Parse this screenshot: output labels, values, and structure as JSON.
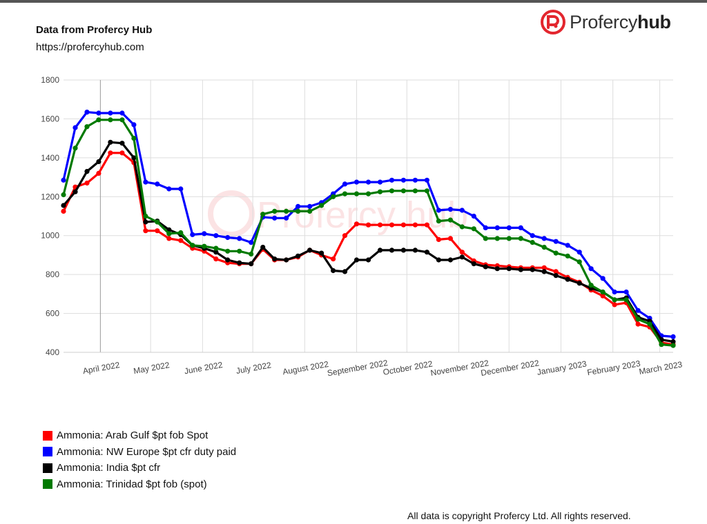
{
  "header": {
    "title": "Data from Profercy Hub",
    "url": "https://profercyhub.com"
  },
  "brand": {
    "name_regular": "Profercy",
    "name_bold": "hub",
    "icon": "profercy-logo-icon",
    "color": "#e3262e"
  },
  "watermark": "Profercy hub",
  "footer": "All data is copyright Profercy Ltd. All rights reserved.",
  "chart_data": {
    "type": "line",
    "title": "",
    "xlabel": "",
    "ylabel": "",
    "ylim": [
      400,
      1800
    ],
    "yticks": [
      400,
      600,
      800,
      1000,
      1200,
      1400,
      1600,
      1800
    ],
    "grid": true,
    "legend_position": "bottom-left",
    "xticks": [
      {
        "label": "April 2022",
        "date": "2022-04-01"
      },
      {
        "label": "May 2022",
        "date": "2022-05-01"
      },
      {
        "label": "June 2022",
        "date": "2022-06-01"
      },
      {
        "label": "July 2022",
        "date": "2022-07-01"
      },
      {
        "label": "August 2022",
        "date": "2022-08-01"
      },
      {
        "label": "September 2022",
        "date": "2022-09-01"
      },
      {
        "label": "October 2022",
        "date": "2022-10-01"
      },
      {
        "label": "November 2022",
        "date": "2022-11-01"
      },
      {
        "label": "December 2022",
        "date": "2022-12-01"
      },
      {
        "label": "January 2023",
        "date": "2023-01-01"
      },
      {
        "label": "February 2023",
        "date": "2023-02-01"
      },
      {
        "label": "March 2023",
        "date": "2023-03-01"
      }
    ],
    "x": [
      "2022-03-10",
      "2022-03-17",
      "2022-03-24",
      "2022-03-31",
      "2022-04-07",
      "2022-04-14",
      "2022-04-21",
      "2022-04-28",
      "2022-05-05",
      "2022-05-12",
      "2022-05-19",
      "2022-05-26",
      "2022-06-02",
      "2022-06-09",
      "2022-06-16",
      "2022-06-23",
      "2022-06-30",
      "2022-07-07",
      "2022-07-14",
      "2022-07-21",
      "2022-07-28",
      "2022-08-04",
      "2022-08-11",
      "2022-08-18",
      "2022-08-25",
      "2022-09-01",
      "2022-09-08",
      "2022-09-15",
      "2022-09-22",
      "2022-09-29",
      "2022-10-06",
      "2022-10-13",
      "2022-10-20",
      "2022-10-27",
      "2022-11-03",
      "2022-11-10",
      "2022-11-17",
      "2022-11-24",
      "2022-12-01",
      "2022-12-08",
      "2022-12-15",
      "2022-12-22",
      "2022-12-29",
      "2023-01-05",
      "2023-01-12",
      "2023-01-19",
      "2023-01-26",
      "2023-02-02",
      "2023-02-09",
      "2023-02-16",
      "2023-02-23",
      "2023-03-02",
      "2023-03-09"
    ],
    "series": [
      {
        "name": "Ammonia: Arab Gulf $pt fob Spot",
        "color": "#ff0000",
        "values": [
          1125,
          1250,
          1270,
          1320,
          1425,
          1425,
          1375,
          1025,
          1025,
          985,
          975,
          935,
          920,
          880,
          860,
          855,
          855,
          930,
          875,
          875,
          890,
          925,
          900,
          880,
          1000,
          1060,
          1055,
          1055,
          1055,
          1055,
          1055,
          1055,
          980,
          985,
          915,
          870,
          850,
          845,
          840,
          835,
          835,
          835,
          815,
          785,
          760,
          720,
          690,
          645,
          655,
          545,
          530,
          450,
          440
        ]
      },
      {
        "name": "Ammonia: NW Europe $pt cfr duty paid",
        "color": "#0000ff",
        "values": [
          1285,
          1555,
          1635,
          1630,
          1630,
          1630,
          1570,
          1275,
          1265,
          1240,
          1240,
          1005,
          1010,
          1000,
          990,
          985,
          965,
          1095,
          1090,
          1090,
          1150,
          1150,
          1170,
          1215,
          1265,
          1275,
          1275,
          1275,
          1285,
          1285,
          1285,
          1285,
          1130,
          1135,
          1130,
          1100,
          1040,
          1040,
          1040,
          1040,
          1000,
          985,
          970,
          950,
          915,
          830,
          780,
          710,
          710,
          615,
          575,
          485,
          480
        ]
      },
      {
        "name": "Ammonia: India $pt cfr",
        "color": "#000000",
        "values": [
          1155,
          1225,
          1330,
          1380,
          1480,
          1475,
          1400,
          1070,
          1075,
          1030,
          1005,
          950,
          935,
          915,
          875,
          860,
          855,
          940,
          880,
          875,
          895,
          925,
          910,
          820,
          815,
          875,
          875,
          925,
          925,
          925,
          925,
          915,
          875,
          875,
          890,
          855,
          840,
          830,
          830,
          825,
          825,
          815,
          795,
          775,
          755,
          730,
          710,
          670,
          680,
          580,
          560,
          465,
          455
        ]
      },
      {
        "name": "Ammonia: Trinidad $pt fob (spot)",
        "color": "#007a00",
        "values": [
          1210,
          1450,
          1560,
          1595,
          1595,
          1595,
          1500,
          1100,
          1070,
          1010,
          1015,
          950,
          945,
          935,
          920,
          920,
          905,
          1110,
          1125,
          1125,
          1125,
          1125,
          1155,
          1200,
          1215,
          1215,
          1215,
          1225,
          1230,
          1230,
          1230,
          1230,
          1075,
          1080,
          1045,
          1035,
          985,
          985,
          985,
          985,
          965,
          940,
          910,
          895,
          865,
          745,
          710,
          670,
          670,
          570,
          545,
          440,
          435
        ]
      }
    ]
  }
}
